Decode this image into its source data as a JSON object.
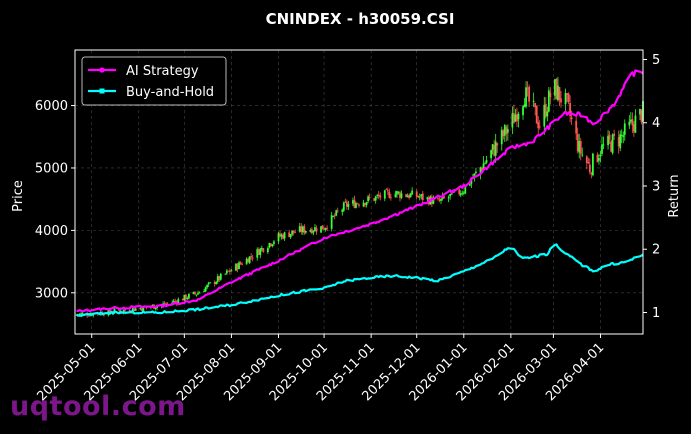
{
  "watermark": "uqtool.com",
  "chart_data": {
    "type": "candlestick+line",
    "title": "CNINDEX - h30059.CSI",
    "ylabel_left": "Price",
    "ylabel_right": "Return",
    "ylim_left": [
      2340,
      6890
    ],
    "ylim_right": [
      0.66,
      5.15
    ],
    "yticks_left": [
      3000,
      4000,
      5000,
      6000
    ],
    "yticks_right": [
      1,
      2,
      3,
      4,
      5
    ],
    "x_tick_labels": [
      "2025-05-01",
      "2025-06-01",
      "2025-07-01",
      "2025-08-01",
      "2025-09-01",
      "2025-10-01",
      "2025-11-01",
      "2025-12-01",
      "2026-01-01",
      "2026-02-01",
      "2026-03-01",
      "2026-04-01"
    ],
    "x_range": [
      "2025-04-20",
      "2026-04-29"
    ],
    "grid": true,
    "legend_position": "top-left",
    "colors": {
      "up": "#33ff33",
      "down": "#ff5555",
      "ai": "#ff00ff",
      "bh": "#00ffff",
      "grid": "#444444",
      "axis": "#ffffff"
    },
    "price_anchors": [
      [
        "2025-04-21",
        2650
      ],
      [
        "2025-05-15",
        2700
      ],
      [
        "2025-06-01",
        2750
      ],
      [
        "2025-06-20",
        2820
      ],
      [
        "2025-07-10",
        3000
      ],
      [
        "2025-07-25",
        3250
      ],
      [
        "2025-08-15",
        3600
      ],
      [
        "2025-09-01",
        3900
      ],
      [
        "2025-09-15",
        4000
      ],
      [
        "2025-10-01",
        4050
      ],
      [
        "2025-10-15",
        4400
      ],
      [
        "2025-11-01",
        4500
      ],
      [
        "2025-11-15",
        4600
      ],
      [
        "2025-12-01",
        4550
      ],
      [
        "2025-12-15",
        4450
      ],
      [
        "2026-01-01",
        4650
      ],
      [
        "2026-01-15",
        5100
      ],
      [
        "2026-02-01",
        5700
      ],
      [
        "2026-02-10",
        6200
      ],
      [
        "2026-02-20",
        5700
      ],
      [
        "2026-03-01",
        6300
      ],
      [
        "2026-03-10",
        6000
      ],
      [
        "2026-03-18",
        5300
      ],
      [
        "2026-03-25",
        5000
      ],
      [
        "2026-04-01",
        5300
      ],
      [
        "2026-04-15",
        5500
      ],
      [
        "2026-04-29",
        5900
      ]
    ],
    "series": [
      {
        "name": "AI Strategy",
        "points": [
          [
            "2025-04-21",
            1.02
          ],
          [
            "2025-05-15",
            1.07
          ],
          [
            "2025-06-15",
            1.1
          ],
          [
            "2025-07-10",
            1.2
          ],
          [
            "2025-08-01",
            1.48
          ],
          [
            "2025-09-01",
            1.82
          ],
          [
            "2025-10-01",
            2.18
          ],
          [
            "2025-11-01",
            2.4
          ],
          [
            "2025-12-01",
            2.68
          ],
          [
            "2026-01-01",
            3.0
          ],
          [
            "2026-01-15",
            3.27
          ],
          [
            "2026-02-01",
            3.6
          ],
          [
            "2026-02-15",
            3.7
          ],
          [
            "2026-03-01",
            4.0
          ],
          [
            "2026-03-08",
            4.15
          ],
          [
            "2026-03-20",
            4.12
          ],
          [
            "2026-03-28",
            3.98
          ],
          [
            "2026-04-10",
            4.3
          ],
          [
            "2026-04-22",
            4.78
          ],
          [
            "2026-04-29",
            4.8
          ]
        ]
      },
      {
        "name": "Buy-and-Hold",
        "points": [
          [
            "2025-04-21",
            0.95
          ],
          [
            "2025-05-15",
            1.0
          ],
          [
            "2025-06-15",
            1.0
          ],
          [
            "2025-07-10",
            1.05
          ],
          [
            "2025-08-01",
            1.12
          ],
          [
            "2025-09-01",
            1.27
          ],
          [
            "2025-09-20",
            1.35
          ],
          [
            "2025-10-01",
            1.38
          ],
          [
            "2025-10-15",
            1.5
          ],
          [
            "2025-11-01",
            1.55
          ],
          [
            "2025-11-15",
            1.58
          ],
          [
            "2025-12-01",
            1.55
          ],
          [
            "2025-12-15",
            1.5
          ],
          [
            "2026-01-01",
            1.65
          ],
          [
            "2026-01-20",
            1.85
          ],
          [
            "2026-02-01",
            2.05
          ],
          [
            "2026-02-08",
            1.85
          ],
          [
            "2026-02-25",
            1.92
          ],
          [
            "2026-03-01",
            2.1
          ],
          [
            "2026-03-10",
            1.92
          ],
          [
            "2026-03-20",
            1.75
          ],
          [
            "2026-03-28",
            1.65
          ],
          [
            "2026-04-05",
            1.75
          ],
          [
            "2026-04-18",
            1.8
          ],
          [
            "2026-04-29",
            1.92
          ]
        ]
      }
    ]
  }
}
